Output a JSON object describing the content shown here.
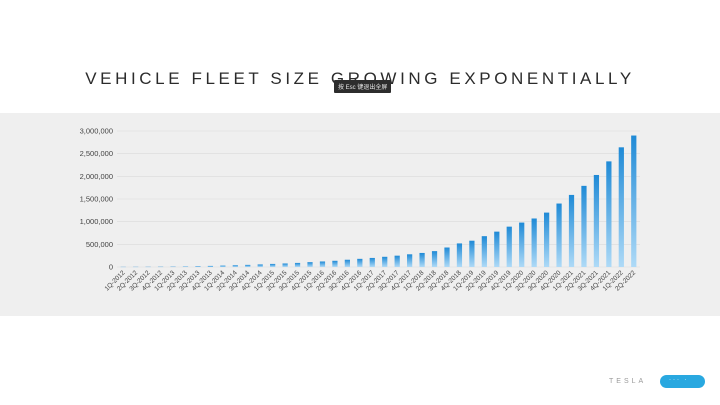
{
  "slide": {
    "title": "VEHICLE FLEET SIZE GROWING EXPONENTIALLY",
    "tooltip": "按 Esc 键退出全屏",
    "footer_logo": "TESLA",
    "footer_button": "··· ·"
  },
  "colors": {
    "bar_top": "#1f8ad6",
    "bar_bottom": "#aedaf7",
    "grid": "#d9d9d9",
    "panel": "#efefef"
  },
  "chart_data": {
    "type": "bar",
    "title": "VEHICLE FLEET SIZE GROWING EXPONENTIALLY",
    "xlabel": "",
    "ylabel": "",
    "ylim": [
      0,
      3000000
    ],
    "yticks": [
      0,
      500000,
      1000000,
      1500000,
      2000000,
      2500000,
      3000000
    ],
    "ytick_labels": [
      "0",
      "500,000",
      "1,000,000",
      "1,500,000",
      "2,000,000",
      "2,500,000",
      "3,000,000"
    ],
    "grid": true,
    "categories": [
      "1Q-2012",
      "2Q-2012",
      "3Q-2012",
      "4Q-2012",
      "1Q-2013",
      "2Q-2013",
      "3Q-2013",
      "4Q-2013",
      "1Q-2014",
      "2Q-2014",
      "3Q-2014",
      "4Q-2014",
      "1Q-2015",
      "2Q-2015",
      "3Q-2015",
      "4Q-2015",
      "1Q-2016",
      "2Q-2016",
      "3Q-2016",
      "4Q-2016",
      "1Q-2017",
      "2Q-2017",
      "3Q-2017",
      "4Q-2017",
      "1Q-2018",
      "2Q-2018",
      "3Q-2018",
      "4Q-2018",
      "1Q-2019",
      "2Q-2019",
      "3Q-2019",
      "4Q-2019",
      "1Q-2020",
      "2Q-2020",
      "3Q-2020",
      "4Q-2020",
      "1Q-2021",
      "2Q-2021",
      "3Q-2021",
      "4Q-2021",
      "1Q-2022",
      "2Q-2022"
    ],
    "values": [
      3000,
      3500,
      4000,
      5000,
      7000,
      12000,
      17000,
      24000,
      31000,
      39000,
      47000,
      57000,
      68000,
      78000,
      90000,
      107000,
      122000,
      137000,
      160000,
      180000,
      200000,
      225000,
      250000,
      280000,
      310000,
      350000,
      430000,
      520000,
      580000,
      680000,
      780000,
      890000,
      980000,
      1070000,
      1200000,
      1400000,
      1590000,
      1790000,
      2030000,
      2330000,
      2640000,
      2900000
    ]
  }
}
